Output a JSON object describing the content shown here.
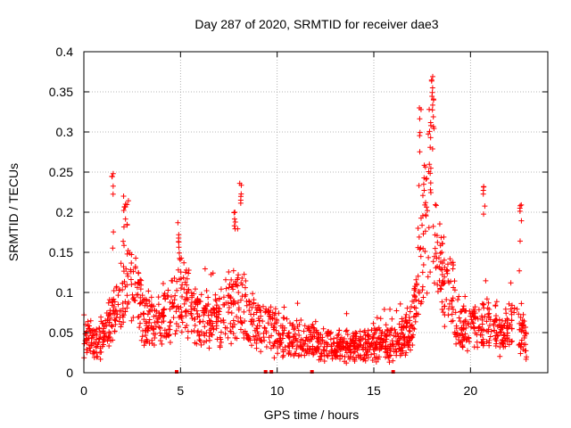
{
  "chart_data": {
    "type": "scatter",
    "title": "Day 287 of 2020, SRMTID for receiver dae3",
    "xlabel": "GPS time / hours",
    "ylabel": "SRMTID / TECUs",
    "xlim": [
      0,
      24
    ],
    "ylim": [
      0,
      0.4
    ],
    "x_ticks": [
      0,
      5,
      10,
      15,
      20
    ],
    "x_tick_labels": [
      "0",
      "5",
      "10",
      "15",
      "20"
    ],
    "y_ticks": [
      0,
      0.05,
      0.1,
      0.15,
      0.2,
      0.25,
      0.3,
      0.35,
      0.4
    ],
    "y_tick_labels": [
      "0",
      "0.05",
      "0.1",
      "0.15",
      "0.2",
      "0.25",
      "0.3",
      "0.35",
      "0.4"
    ],
    "grid": true,
    "marker": "+",
    "color": "#ff0000",
    "series": [
      {
        "name": "SRMTID",
        "profile": [
          {
            "x": 0.0,
            "y": 0.045
          },
          {
            "x": 0.5,
            "y": 0.04
          },
          {
            "x": 1.0,
            "y": 0.042
          },
          {
            "x": 1.3,
            "y": 0.06
          },
          {
            "x": 1.6,
            "y": 0.08
          },
          {
            "x": 2.0,
            "y": 0.095
          },
          {
            "x": 2.3,
            "y": 0.11
          },
          {
            "x": 2.7,
            "y": 0.1
          },
          {
            "x": 3.0,
            "y": 0.075
          },
          {
            "x": 3.5,
            "y": 0.06
          },
          {
            "x": 4.0,
            "y": 0.065
          },
          {
            "x": 4.5,
            "y": 0.08
          },
          {
            "x": 5.0,
            "y": 0.1
          },
          {
            "x": 5.5,
            "y": 0.075
          },
          {
            "x": 6.0,
            "y": 0.065
          },
          {
            "x": 7.0,
            "y": 0.065
          },
          {
            "x": 7.5,
            "y": 0.075
          },
          {
            "x": 8.0,
            "y": 0.09
          },
          {
            "x": 8.5,
            "y": 0.07
          },
          {
            "x": 9.0,
            "y": 0.06
          },
          {
            "x": 10.0,
            "y": 0.05
          },
          {
            "x": 11.0,
            "y": 0.042
          },
          {
            "x": 12.0,
            "y": 0.035
          },
          {
            "x": 13.0,
            "y": 0.032
          },
          {
            "x": 14.0,
            "y": 0.032
          },
          {
            "x": 15.0,
            "y": 0.035
          },
          {
            "x": 16.0,
            "y": 0.038
          },
          {
            "x": 16.5,
            "y": 0.042
          },
          {
            "x": 17.0,
            "y": 0.06
          },
          {
            "x": 17.3,
            "y": 0.12
          },
          {
            "x": 17.6,
            "y": 0.18
          },
          {
            "x": 18.0,
            "y": 0.22
          },
          {
            "x": 18.2,
            "y": 0.15
          },
          {
            "x": 18.6,
            "y": 0.12
          },
          {
            "x": 19.0,
            "y": 0.1
          },
          {
            "x": 19.4,
            "y": 0.06
          },
          {
            "x": 20.0,
            "y": 0.055
          },
          {
            "x": 20.8,
            "y": 0.06
          },
          {
            "x": 21.5,
            "y": 0.05
          },
          {
            "x": 22.0,
            "y": 0.055
          },
          {
            "x": 22.5,
            "y": 0.06
          },
          {
            "x": 22.9,
            "y": 0.04
          }
        ],
        "spikes": [
          {
            "x": 1.5,
            "y": 0.248
          },
          {
            "x": 2.1,
            "y": 0.22
          },
          {
            "x": 2.2,
            "y": 0.21
          },
          {
            "x": 4.9,
            "y": 0.172
          },
          {
            "x": 7.8,
            "y": 0.2
          },
          {
            "x": 8.1,
            "y": 0.236
          },
          {
            "x": 17.4,
            "y": 0.33
          },
          {
            "x": 17.9,
            "y": 0.328
          },
          {
            "x": 18.0,
            "y": 0.369
          },
          {
            "x": 18.05,
            "y": 0.355
          },
          {
            "x": 20.7,
            "y": 0.232
          },
          {
            "x": 22.6,
            "y": 0.209
          }
        ],
        "point_count": 1700
      }
    ],
    "gap_markers_x": [
      4.8,
      9.4,
      9.7,
      11.8,
      16.0
    ]
  }
}
